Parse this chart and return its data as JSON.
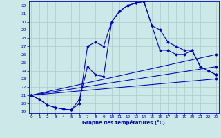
{
  "xlabel": "Graphe des températures (°C)",
  "background_color": "#cce8e8",
  "grid_color": "#aacccc",
  "line_color": "#0000bb",
  "xlim": [
    0,
    23
  ],
  "ylim": [
    19,
    32.5
  ],
  "xticks": [
    0,
    1,
    2,
    3,
    4,
    5,
    6,
    7,
    8,
    9,
    10,
    11,
    12,
    13,
    14,
    15,
    16,
    17,
    18,
    19,
    20,
    21,
    22,
    23
  ],
  "yticks": [
    19,
    20,
    21,
    22,
    23,
    24,
    25,
    26,
    27,
    28,
    29,
    30,
    31,
    32
  ],
  "line1_x": [
    0,
    1,
    2,
    3,
    4,
    5,
    6,
    7,
    8,
    9,
    10,
    11,
    12,
    13,
    14,
    15,
    16,
    17,
    18,
    19,
    20,
    21,
    22,
    23
  ],
  "line1_y": [
    21.0,
    20.5,
    19.8,
    19.5,
    19.3,
    19.2,
    20.5,
    24.5,
    23.5,
    23.3,
    30.0,
    31.3,
    32.0,
    32.3,
    32.5,
    29.5,
    29.0,
    27.5,
    27.0,
    26.5,
    26.5,
    24.5,
    24.0,
    23.5
  ],
  "line2_x": [
    0,
    1,
    2,
    3,
    4,
    5,
    6,
    7,
    8,
    9,
    10,
    11,
    12,
    13,
    14,
    15,
    16,
    17,
    18,
    19,
    20,
    21,
    22,
    23
  ],
  "line2_y": [
    21.0,
    20.5,
    19.8,
    19.5,
    19.3,
    19.2,
    20.0,
    27.0,
    27.5,
    27.0,
    30.0,
    31.3,
    32.0,
    32.3,
    32.5,
    29.5,
    26.5,
    26.5,
    26.0,
    26.0,
    26.5,
    24.5,
    24.0,
    23.5
  ],
  "trend1_x": [
    0,
    23
  ],
  "trend1_y": [
    21.0,
    26.0
  ],
  "trend2_x": [
    0,
    23
  ],
  "trend2_y": [
    21.0,
    24.5
  ],
  "trend3_x": [
    0,
    23
  ],
  "trend3_y": [
    21.0,
    23.0
  ]
}
